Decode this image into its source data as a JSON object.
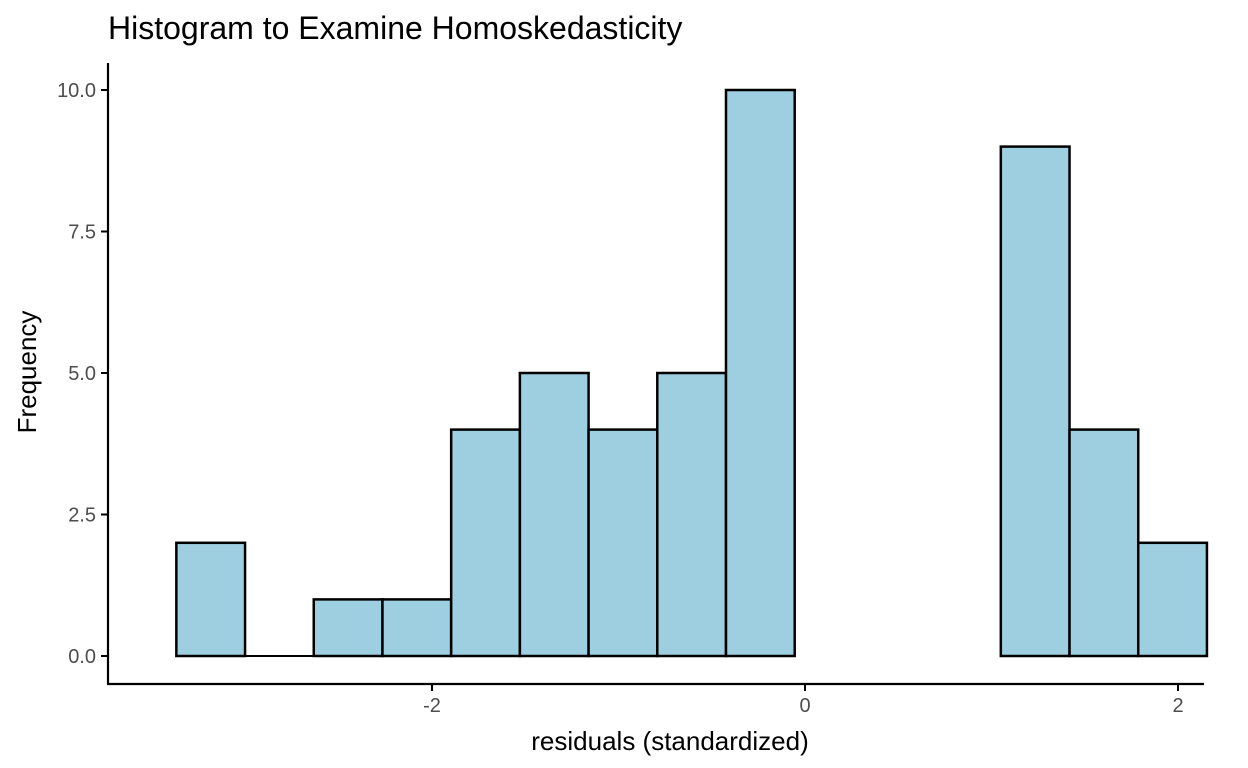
{
  "chart_data": {
    "type": "histogram",
    "title": "Histogram to Examine Homoskedasticity",
    "xlabel": "residuals (standardized)",
    "ylabel": "Frequency",
    "xlim": [
      -3.65,
      2.15
    ],
    "ylim": [
      -0.5,
      10.5
    ],
    "x_ticks": [
      -2,
      0,
      2
    ],
    "x_tick_labels": [
      "-2",
      "0",
      "2"
    ],
    "y_ticks": [
      0,
      2.5,
      5,
      7.5,
      10
    ],
    "y_tick_labels": [
      "0.0",
      "2.5",
      "5.0",
      "7.5",
      "10.0"
    ],
    "bin_width": 0.3684,
    "bins": [
      {
        "x0": -3.3708,
        "x1": -3.0024,
        "count": 2
      },
      {
        "x0": -3.0024,
        "x1": -2.634,
        "count": 0
      },
      {
        "x0": -2.634,
        "x1": -2.2656,
        "count": 1
      },
      {
        "x0": -2.2656,
        "x1": -1.8972,
        "count": 1
      },
      {
        "x0": -1.8972,
        "x1": -1.5288,
        "count": 4
      },
      {
        "x0": -1.5288,
        "x1": -1.1604,
        "count": 5
      },
      {
        "x0": -1.1604,
        "x1": -0.792,
        "count": 4
      },
      {
        "x0": -0.792,
        "x1": -0.4236,
        "count": 5
      },
      {
        "x0": -0.4236,
        "x1": -0.0552,
        "count": 10
      },
      {
        "x0": 1.05,
        "x1": 1.4184,
        "count": 9
      },
      {
        "x0": 1.4184,
        "x1": 1.7868,
        "count": 4
      },
      {
        "x0": 1.7868,
        "x1": 2.1552,
        "count": 2
      }
    ],
    "bar_fill": "#9ecfe0",
    "bar_outline": "#000000",
    "grid": false,
    "legend": "none"
  }
}
